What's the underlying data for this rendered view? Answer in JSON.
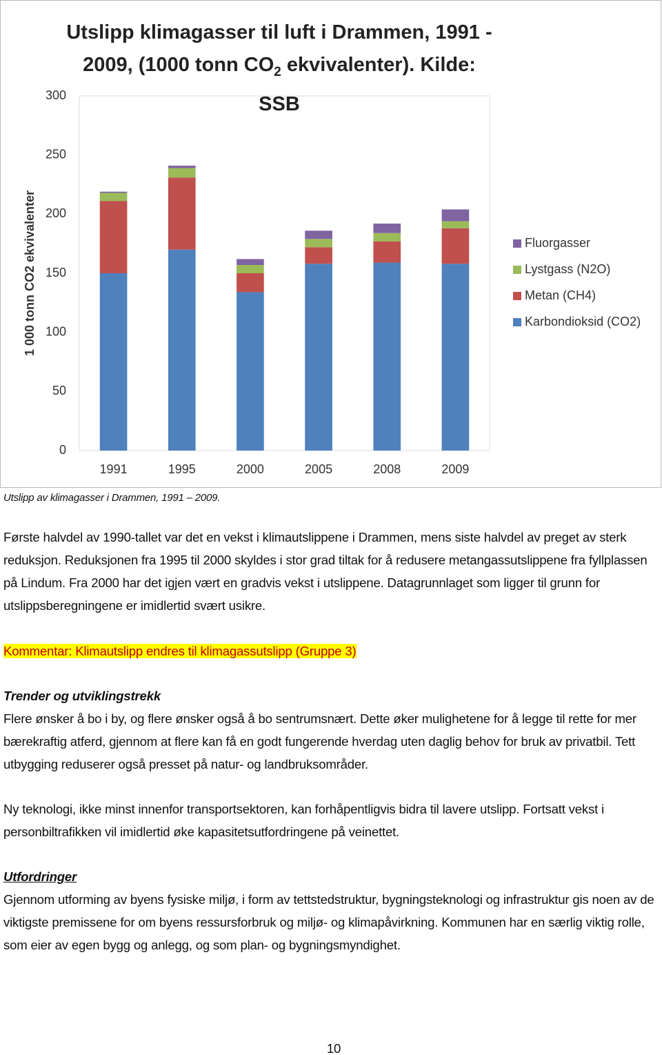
{
  "chart_data": {
    "type": "stacked_bar",
    "title": [
      "Utslipp klimagasser til luft i Drammen, 1991 - 2009, (1000 tonn CO",
      "2",
      " ekvivalenter). Kilde: SSB"
    ],
    "y_label": "1 000 tonn CO2 ekvivalenter",
    "categories": [
      "1991",
      "1995",
      "2000",
      "2005",
      "2008",
      "2009"
    ],
    "series": [
      {
        "name": "Karbondioksid (CO2)",
        "color": "#4f81bd",
        "values": [
          150,
          170,
          134,
          158,
          159,
          158
        ]
      },
      {
        "name": "Metan (CH4)",
        "color": "#c0504d",
        "values": [
          61,
          61,
          16,
          14,
          18,
          30
        ]
      },
      {
        "name": "Lystgass (N2O)",
        "color": "#9bbb59",
        "values": [
          7,
          8,
          7,
          7,
          7,
          6
        ]
      },
      {
        "name": "Fluorgasser",
        "color": "#8064a2",
        "values": [
          1,
          2,
          5,
          7,
          8,
          10
        ]
      }
    ],
    "ylim": [
      0,
      300
    ],
    "yticks": [
      0,
      50,
      100,
      150,
      200,
      250,
      300
    ],
    "grid": false,
    "legend": "right"
  },
  "document": {
    "caption": "Utslipp av klimagasser i Drammen, 1991 – 2009.",
    "paragraph_1": "Første halvdel av 1990-tallet var det en vekst i klimautslippene i Drammen, mens siste halvdel av preget av sterk reduksjon. Reduksjonen fra 1995 til 2000 skyldes i stor grad tiltak for å redusere metangassutslippene fra fyllplassen på Lindum.  Fra 2000 har det igjen vært en gradvis vekst i utslippene. Datagrunnlaget som ligger til grunn for utslippsberegningene er imidlertid svært usikre.",
    "comment": "Kommentar: Klimautslipp endres til klimagassutslipp (Gruppe 3)",
    "heading_1": "Trender og utviklingstrekk",
    "paragraph_2": "Flere ønsker å bo i by, og flere ønsker også å bo sentrumsnært. Dette øker mulighetene for å legge til rette for mer bærekraftig atferd, gjennom at flere kan få en godt fungerende hverdag uten daglig behov for bruk av privatbil. Tett utbygging reduserer også presset på natur- og landbruksområder.",
    "paragraph_3": "Ny teknologi, ikke minst innenfor transportsektoren, kan forhåpentligvis bidra til lavere utslipp. Fortsatt vekst i personbiltrafikken vil imidlertid øke kapasitetsutfordringene på veinettet.",
    "heading_2": "Utfordringer",
    "paragraph_4": "Gjennom utforming av byens fysiske miljø, i form av tettstedstruktur, bygningsteknologi og infrastruktur gis noen av de viktigste premissene for om byens ressursforbruk og miljø- og klimapåvirkning. Kommunen har en særlig viktig rolle, som eier av egen bygg og anlegg, og som plan- og bygningsmyndighet.",
    "page_number": "10"
  }
}
